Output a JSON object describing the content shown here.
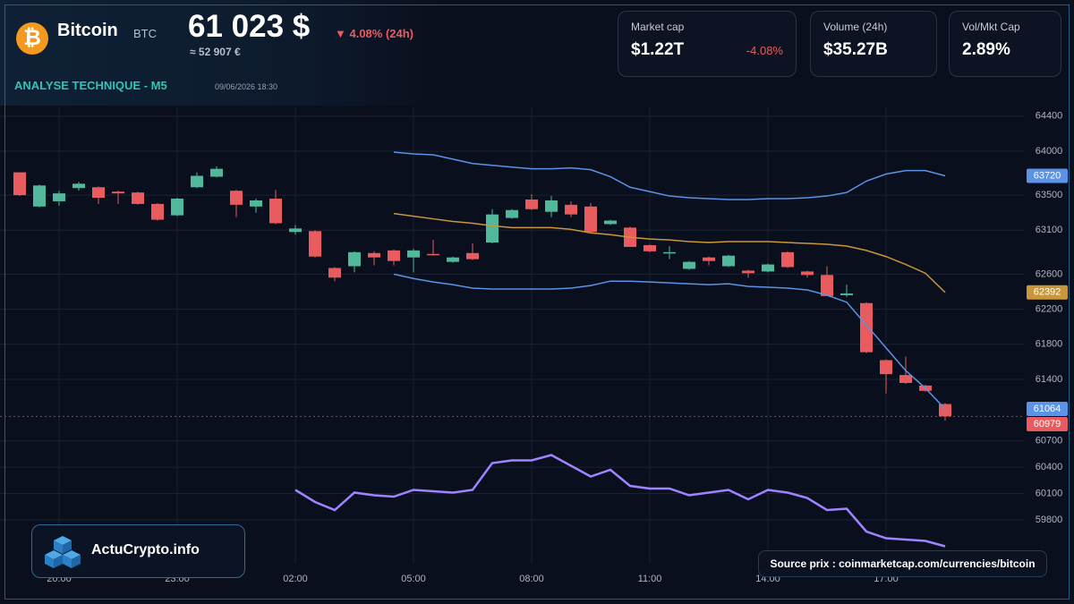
{
  "header": {
    "icon": "₿",
    "name": "Bitcoin",
    "symbol": "BTC",
    "price": "61 023 $",
    "change": "▼ 4.08% (24h)",
    "price_eur": "≈ 52 907 €",
    "section": "ANALYSE TECHNIQUE - M5",
    "datetime": "09/06/2026 18:30"
  },
  "stats": [
    {
      "label": "Market cap",
      "value": "$1.22T",
      "change": "-4.08%"
    },
    {
      "label": "Volume (24h)",
      "value": "$35.27B"
    },
    {
      "label": "Vol/Mkt Cap",
      "value": "2.89%"
    }
  ],
  "brand": "ActuCrypto.info",
  "source": "Source prix : coinmarketcap.com/currencies/bitcoin",
  "chart_data": {
    "type": "candlestick",
    "x": [
      0,
      0.5,
      1,
      1.5,
      2,
      2.5,
      3,
      3.5,
      4,
      4.5,
      5,
      5.5,
      6,
      6.5,
      7,
      7.5,
      8,
      8.5,
      9,
      9.5,
      10,
      10.5,
      11,
      11.5,
      12,
      12.5,
      13,
      13.5,
      14,
      14.5,
      15,
      15.5,
      16,
      16.5,
      17,
      17.5,
      18,
      18.5,
      19,
      19.5,
      20,
      20.5,
      21,
      21.5,
      22,
      22.5,
      23,
      23.5
    ],
    "open": [
      63760,
      63370,
      63430,
      63580,
      63590,
      63540,
      63530,
      63400,
      63270,
      63590,
      63710,
      63550,
      63370,
      63460,
      63080,
      63090,
      62670,
      62690,
      62840,
      62870,
      62790,
      62830,
      62740,
      62840,
      62960,
      63240,
      63450,
      63310,
      63390,
      63370,
      63170,
      63130,
      62930,
      62840,
      62660,
      62790,
      62690,
      62640,
      62630,
      62850,
      62630,
      62590,
      62360,
      62270,
      61620,
      61450,
      61330,
      61120
    ],
    "high": [
      63760,
      63620,
      63550,
      63650,
      63600,
      63550,
      63540,
      63410,
      63470,
      63760,
      63830,
      63560,
      63460,
      63560,
      63160,
      63100,
      62680,
      62860,
      62860,
      62880,
      62890,
      62990,
      62800,
      62950,
      63340,
      63340,
      63510,
      63490,
      63430,
      63410,
      63220,
      63140,
      62940,
      62920,
      62750,
      62800,
      62820,
      62650,
      62720,
      62860,
      62640,
      62690,
      62480,
      62280,
      61630,
      61660,
      61340,
      61130
    ],
    "low": [
      63490,
      63360,
      63380,
      63550,
      63400,
      63400,
      63390,
      63210,
      63260,
      63580,
      63700,
      63250,
      63300,
      63170,
      63050,
      62790,
      62520,
      62620,
      62700,
      62700,
      62620,
      62810,
      62730,
      62760,
      62950,
      63230,
      63330,
      63250,
      63250,
      63080,
      63160,
      62910,
      62850,
      62770,
      62650,
      62700,
      62680,
      62560,
      62620,
      62670,
      62560,
      62350,
      62340,
      61700,
      61240,
      61350,
      61260,
      60930
    ],
    "close": [
      63500,
      63610,
      63520,
      63630,
      63470,
      63520,
      63400,
      63220,
      63460,
      63720,
      63800,
      63390,
      63440,
      63180,
      63120,
      62800,
      62560,
      62850,
      62790,
      62750,
      62870,
      62820,
      62790,
      62770,
      63280,
      63330,
      63340,
      63440,
      63280,
      63080,
      63210,
      62910,
      62860,
      62850,
      62740,
      62750,
      62810,
      62610,
      62710,
      62680,
      62590,
      62350,
      62380,
      61710,
      61460,
      61360,
      61270,
      60979
    ],
    "up_color": "#52b89c",
    "down_color": "#e85b5e",
    "series": [
      {
        "color": "#5b93e6",
        "values": [
          null,
          null,
          null,
          null,
          null,
          null,
          null,
          null,
          null,
          null,
          null,
          null,
          null,
          null,
          null,
          null,
          null,
          null,
          null,
          63990,
          63970,
          63960,
          63910,
          63860,
          63840,
          63820,
          63800,
          63800,
          63810,
          63790,
          63710,
          63590,
          63540,
          63490,
          63470,
          63460,
          63450,
          63450,
          63460,
          63460,
          63470,
          63490,
          63530,
          63660,
          63740,
          63780,
          63780,
          63720
        ]
      },
      {
        "color": "#c9973a",
        "values": [
          null,
          null,
          null,
          null,
          null,
          null,
          null,
          null,
          null,
          null,
          null,
          null,
          null,
          null,
          null,
          null,
          null,
          null,
          null,
          63290,
          63260,
          63230,
          63200,
          63180,
          63150,
          63130,
          63130,
          63130,
          63110,
          63070,
          63050,
          63020,
          63000,
          62990,
          62970,
          62960,
          62970,
          62970,
          62970,
          62960,
          62950,
          62940,
          62920,
          62870,
          62800,
          62710,
          62610,
          62392
        ]
      },
      {
        "color": "#5b93e6",
        "values": [
          null,
          null,
          null,
          null,
          null,
          null,
          null,
          null,
          null,
          null,
          null,
          null,
          null,
          null,
          null,
          null,
          null,
          null,
          null,
          62600,
          62550,
          62510,
          62480,
          62440,
          62430,
          62430,
          62430,
          62430,
          62440,
          62470,
          62520,
          62520,
          62510,
          62500,
          62490,
          62480,
          62490,
          62460,
          62450,
          62440,
          62420,
          62360,
          62280,
          62020,
          61760,
          61500,
          61300,
          61064
        ]
      },
      {
        "color": "#a084ff",
        "axis": "y2",
        "values": [
          null,
          null,
          null,
          null,
          null,
          null,
          null,
          null,
          null,
          null,
          null,
          null,
          null,
          null,
          55,
          46,
          40,
          53,
          51,
          50,
          55,
          54,
          53,
          55,
          75,
          77,
          77,
          81,
          73,
          65,
          70,
          58,
          56,
          56,
          51,
          53,
          55,
          48,
          55,
          53,
          49,
          40,
          41,
          24,
          19,
          18,
          17,
          13
        ]
      }
    ],
    "xlim": [
      -0.5,
      25.5
    ],
    "xticks": [
      {
        "value": 1,
        "label": "20:00"
      },
      {
        "value": 4,
        "label": "23:00"
      },
      {
        "value": 7,
        "label": "02:00"
      },
      {
        "value": 10,
        "label": "05:00"
      },
      {
        "value": 13,
        "label": "08:00"
      },
      {
        "value": 16,
        "label": "11:00"
      },
      {
        "value": 19,
        "label": "14:00"
      },
      {
        "value": 22,
        "label": "17:00"
      }
    ],
    "ylim": [
      59300,
      64500
    ],
    "yticks": [
      64400,
      64000,
      63500,
      63100,
      62600,
      62200,
      61800,
      61400,
      60700,
      60400,
      60100,
      59800
    ],
    "y2lim": [
      0,
      100
    ],
    "grid": true
  }
}
